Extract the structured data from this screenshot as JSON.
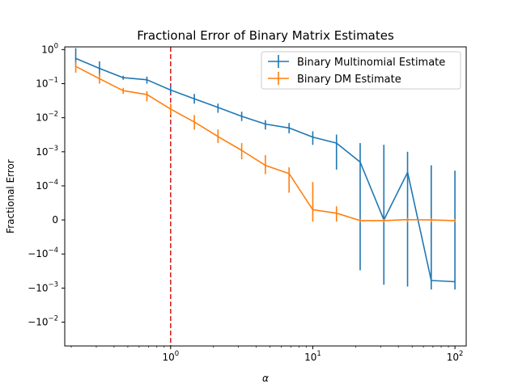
{
  "chart_data": {
    "type": "line",
    "title": "Fractional Error of Binary Matrix Estimates",
    "xlabel": "α",
    "ylabel": "Fractional Error",
    "x_scale": "log",
    "y_scale": "symlog",
    "xlim": [
      0.18,
      120
    ],
    "ylim": [
      -0.05,
      1.2
    ],
    "x_ticks": [
      {
        "value": 1,
        "base": "10",
        "exp": "0"
      },
      {
        "value": 10,
        "base": "10",
        "exp": "1"
      },
      {
        "value": 100,
        "base": "10",
        "exp": "2"
      }
    ],
    "y_ticks": [
      {
        "value": 1,
        "base": "10",
        "exp": "0"
      },
      {
        "value": 0.1,
        "base": "10",
        "exp": "−1"
      },
      {
        "value": 0.01,
        "base": "10",
        "exp": "−2"
      },
      {
        "value": 0.001,
        "base": "10",
        "exp": "−3"
      },
      {
        "value": 0.0001,
        "base": "10",
        "exp": "−4"
      },
      {
        "value": 0,
        "base": "0",
        "exp": ""
      },
      {
        "value": -0.0001,
        "base": "−10",
        "exp": "−4"
      },
      {
        "value": -0.001,
        "base": "−10",
        "exp": "−3"
      },
      {
        "value": -0.01,
        "base": "−10",
        "exp": "−2"
      }
    ],
    "reference_line": {
      "x": 1,
      "color": "#d62728"
    },
    "legend_position": "top-right",
    "series": [
      {
        "name": "Binary Multinomial Estimate",
        "color": "#1f77b4",
        "x": [
          0.215,
          0.316,
          0.464,
          0.681,
          1.0,
          1.468,
          2.154,
          3.162,
          4.642,
          6.813,
          10.0,
          14.68,
          21.54,
          31.62,
          46.42,
          68.13,
          100.0
        ],
        "y": [
          0.55,
          0.28,
          0.15,
          0.13,
          0.065,
          0.036,
          0.02,
          0.011,
          0.0065,
          0.005,
          0.0027,
          0.0018,
          0.0005,
          0.0,
          0.00025,
          -0.0006,
          -0.00065
        ],
        "err_low": [
          0.35,
          0.17,
          0.13,
          0.1,
          0.05,
          0.026,
          0.014,
          0.008,
          0.0045,
          0.0035,
          0.0016,
          0.0003,
          -0.0003,
          -0.0008,
          -0.0009,
          -0.0011,
          -0.0011
        ],
        "err_high": [
          1.1,
          0.45,
          0.17,
          0.16,
          0.085,
          0.05,
          0.026,
          0.015,
          0.0085,
          0.007,
          0.004,
          0.0032,
          0.0018,
          0.0016,
          0.001,
          0.0004,
          0.00028
        ]
      },
      {
        "name": "Binary DM Estimate",
        "color": "#ff7f0e",
        "x": [
          0.215,
          0.316,
          0.464,
          0.681,
          1.0,
          1.468,
          2.154,
          3.162,
          4.642,
          6.813,
          10.0,
          14.68,
          21.54,
          31.62,
          46.42,
          68.13,
          100.0
        ],
        "y": [
          0.32,
          0.14,
          0.062,
          0.048,
          0.018,
          0.0075,
          0.0028,
          0.0011,
          0.0004,
          0.00023,
          3e-05,
          2e-05,
          -2e-06,
          -2e-06,
          1e-06,
          0.0,
          -2e-06
        ],
        "err_low": [
          0.21,
          0.1,
          0.05,
          0.03,
          0.012,
          0.0045,
          0.0018,
          0.0006,
          0.00022,
          8e-05,
          -5e-06,
          -5e-06,
          -7e-06,
          -7e-06,
          -7e-06,
          -7e-06,
          -7e-06
        ],
        "err_high": [
          0.45,
          0.2,
          0.075,
          0.06,
          0.026,
          0.012,
          0.0045,
          0.0018,
          0.0008,
          0.00035,
          0.00013,
          4e-05,
          3e-06,
          3e-06,
          7e-06,
          5e-06,
          3e-06
        ]
      }
    ]
  }
}
